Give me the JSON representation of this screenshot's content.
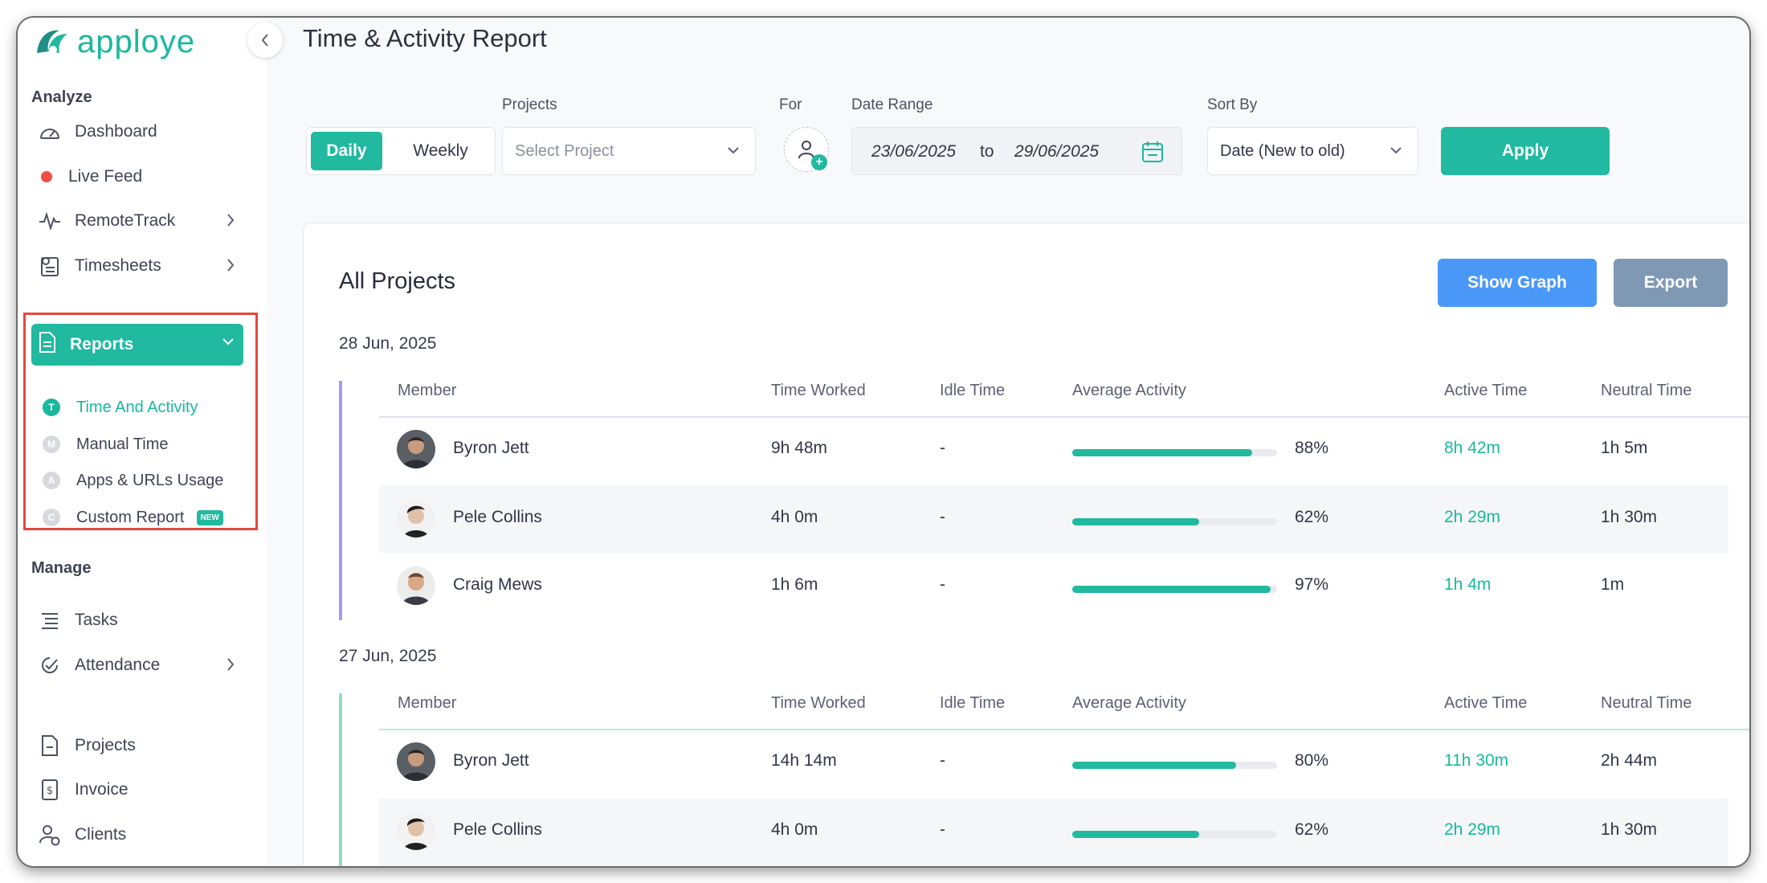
{
  "app": {
    "brand": "apploye",
    "accent": "#21b9a0"
  },
  "sidebar": {
    "analyze_title": "Analyze",
    "manage_title": "Manage",
    "items": {
      "dashboard": "Dashboard",
      "live_feed": "Live Feed",
      "remote_track": "RemoteTrack",
      "timesheets": "Timesheets",
      "reports": "Reports",
      "tasks": "Tasks",
      "attendance": "Attendance",
      "projects": "Projects",
      "invoice": "Invoice",
      "clients": "Clients"
    },
    "reports_sub": [
      {
        "letter": "T",
        "label": "Time And Activity",
        "active": true
      },
      {
        "letter": "M",
        "label": "Manual Time"
      },
      {
        "letter": "A",
        "label": "Apps & URLs Usage"
      },
      {
        "letter": "C",
        "label": "Custom Report",
        "badge": "NEW"
      }
    ]
  },
  "header": {
    "title": "Time & Activity Report"
  },
  "filters": {
    "view_daily": "Daily",
    "view_weekly": "Weekly",
    "projects_label": "Projects",
    "projects_placeholder": "Select Project",
    "for_label": "For",
    "date_range_label": "Date Range",
    "date_from": "23/06/2025",
    "date_to_word": "to",
    "date_to": "29/06/2025",
    "sort_label": "Sort By",
    "sort_value": "Date (New to old)",
    "apply_label": "Apply"
  },
  "report": {
    "title": "All Projects",
    "show_graph_label": "Show Graph",
    "export_label": "Export",
    "columns": [
      "Member",
      "Time Worked",
      "Idle Time",
      "Average Activity",
      "Active Time",
      "Neutral Time"
    ],
    "groups": [
      {
        "date": "28 Jun, 2025",
        "accent": "#a99af0",
        "rows": [
          {
            "member": "Byron Jett",
            "time_worked": "9h 48m",
            "idle": "-",
            "activity": 88,
            "activity_label": "88%",
            "active": "8h 42m",
            "neutral": "1h 5m"
          },
          {
            "member": "Pele Collins",
            "time_worked": "4h 0m",
            "idle": "-",
            "activity": 62,
            "activity_label": "62%",
            "active": "2h 29m",
            "neutral": "1h 30m"
          },
          {
            "member": "Craig Mews",
            "time_worked": "1h 6m",
            "idle": "-",
            "activity": 97,
            "activity_label": "97%",
            "active": "1h 4m",
            "neutral": "1m"
          }
        ]
      },
      {
        "date": "27 Jun, 2025",
        "accent": "#8fdcc6",
        "rows": [
          {
            "member": "Byron Jett",
            "time_worked": "14h 14m",
            "idle": "-",
            "activity": 80,
            "activity_label": "80%",
            "active": "11h 30m",
            "neutral": "2h 44m"
          },
          {
            "member": "Pele Collins",
            "time_worked": "4h 0m",
            "idle": "-",
            "activity": 62,
            "activity_label": "62%",
            "active": "2h 29m",
            "neutral": "1h 30m"
          }
        ]
      }
    ]
  }
}
